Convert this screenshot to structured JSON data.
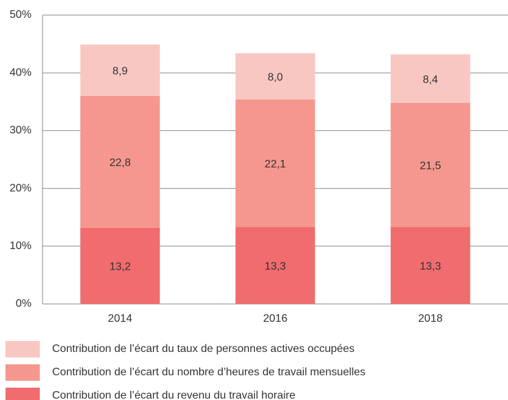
{
  "chart_data": {
    "type": "stacked_bar",
    "categories": [
      "2014",
      "2016",
      "2018"
    ],
    "series": [
      {
        "name": "Contribution de l’écart du revenu du travail horaire",
        "color": "#f06c6f",
        "values": [
          13.2,
          13.3,
          13.3
        ],
        "value_labels": [
          "13,2",
          "13,3",
          "13,3"
        ]
      },
      {
        "name": "Contribution de l’écart du nombre d’heures de travail mensuelles",
        "color": "#f5978e",
        "values": [
          22.8,
          22.1,
          21.5
        ],
        "value_labels": [
          "22,8",
          "22,1",
          "21,5"
        ]
      },
      {
        "name": "Contribution de l’écart du taux de personnes actives occupées",
        "color": "#f9c7c1",
        "values": [
          8.9,
          8.0,
          8.4
        ],
        "value_labels": [
          "8,9",
          "8,0",
          "8,4"
        ]
      }
    ],
    "ylim": [
      0,
      50
    ],
    "yticks": [
      {
        "value": 0,
        "label": "0%"
      },
      {
        "value": 10,
        "label": "10%"
      },
      {
        "value": 20,
        "label": "20%"
      },
      {
        "value": 30,
        "label": "30%"
      },
      {
        "value": 40,
        "label": "40%"
      },
      {
        "value": 50,
        "label": "50%"
      }
    ],
    "grid": true,
    "legend": "bottom"
  }
}
